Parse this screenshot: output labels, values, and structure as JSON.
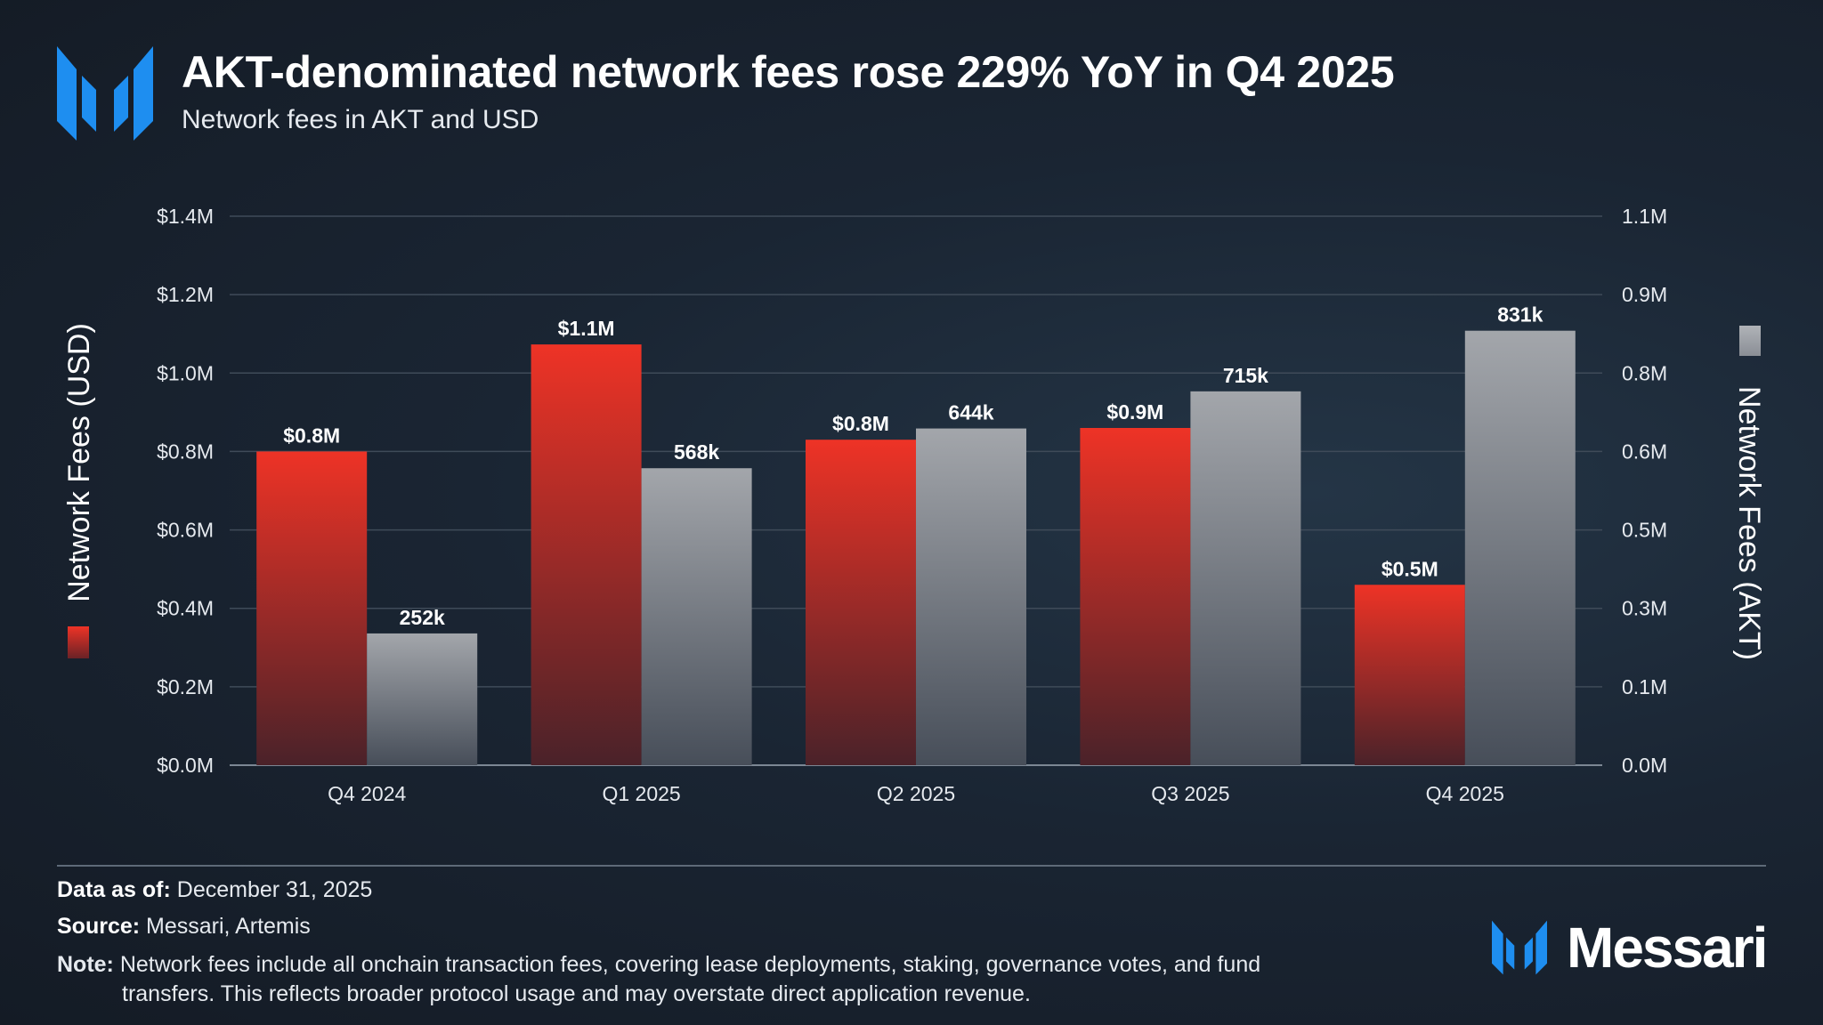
{
  "header": {
    "title": "AKT-denominated network fees rose 229% YoY in Q4 2025",
    "subtitle": "Network fees in AKT and USD"
  },
  "colors": {
    "usd": "#e5332a",
    "akt": "#9a9ea4",
    "accent": "#1e8ef0"
  },
  "icons": {
    "logo": "messari-logo-icon"
  },
  "chart_data": {
    "type": "bar",
    "title": "AKT-denominated network fees rose 229% YoY in Q4 2025",
    "subtitle": "Network fees in AKT and USD",
    "categories": [
      "Q4 2024",
      "Q1 2025",
      "Q2 2025",
      "Q3 2025",
      "Q4 2025"
    ],
    "series": [
      {
        "name": "Network Fees (USD)",
        "axis": "left",
        "values": [
          800000,
          1073000,
          830000,
          860000,
          460000
        ],
        "labels": [
          "$0.8M",
          "$1.1M",
          "$0.8M",
          "$0.9M",
          "$0.5M"
        ]
      },
      {
        "name": "Network Fees (AKT)",
        "axis": "right",
        "values": [
          252000,
          568000,
          644000,
          715000,
          831000
        ],
        "labels": [
          "252k",
          "568k",
          "644k",
          "715k",
          "831k"
        ]
      }
    ],
    "ylabel": "Network Fees (USD)",
    "ylabel_right": "Network Fees (AKT)",
    "ylim": [
      0,
      1400000
    ],
    "ylim_right": [
      0,
      1050000
    ],
    "yticks": [
      0,
      200000,
      400000,
      600000,
      800000,
      1000000,
      1200000,
      1400000
    ],
    "ytick_labels": [
      "$0.0M",
      "$0.2M",
      "$0.4M",
      "$0.6M",
      "$0.8M",
      "$1.0M",
      "$1.2M",
      "$1.4M"
    ],
    "yticks_right": [
      0,
      150000,
      300000,
      450000,
      600000,
      750000,
      900000,
      1050000
    ],
    "ytick_labels_right": [
      "0.0M",
      "0.1M",
      "0.3M",
      "0.5M",
      "0.6M",
      "0.8M",
      "0.9M",
      "1.1M"
    ],
    "grid": true,
    "legend": "axis-titles"
  },
  "footer": {
    "data_as_of_label": "Data as of:",
    "data_as_of_value": " December 31, 2025",
    "source_label": "Source:",
    "source_value": " Messari, Artemis",
    "note_label": "Note:",
    "note_line1": " Network fees include all onchain transaction fees, covering lease deployments, staking, governance votes, and fund",
    "note_line2": "transfers. This reflects broader protocol usage and may overstate direct application revenue.",
    "brand": "Messari"
  }
}
